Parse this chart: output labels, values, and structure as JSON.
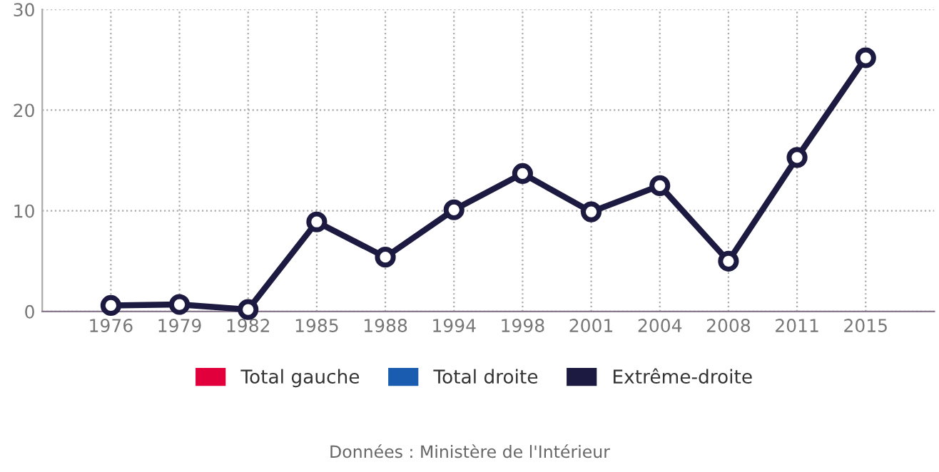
{
  "chart_data": {
    "type": "line",
    "categories": [
      "1976",
      "1979",
      "1982",
      "1985",
      "1988",
      "1994",
      "1998",
      "2001",
      "2004",
      "2008",
      "2011",
      "2015"
    ],
    "series": [
      {
        "name": "Total gauche",
        "color": "#e2003c",
        "values": [
          null,
          null,
          null,
          null,
          null,
          null,
          null,
          null,
          null,
          null,
          null,
          null
        ]
      },
      {
        "name": "Total droite",
        "color": "#1a5cb0",
        "values": [
          null,
          null,
          null,
          null,
          null,
          null,
          null,
          null,
          null,
          null,
          null,
          null
        ]
      },
      {
        "name": "Extrême-droite",
        "color": "#1c1a40",
        "values": [
          0.6,
          0.7,
          0.2,
          8.9,
          5.4,
          10.1,
          13.7,
          9.9,
          12.5,
          5.0,
          15.3,
          25.2
        ]
      }
    ],
    "ylim": [
      0,
      30
    ],
    "yticks": [
      0,
      10,
      20,
      30
    ],
    "grid": true,
    "legend": "bottom",
    "marker": "circle",
    "line_style": "solid",
    "annotations": [
      "Données : Ministère de l'Intérieur"
    ]
  }
}
